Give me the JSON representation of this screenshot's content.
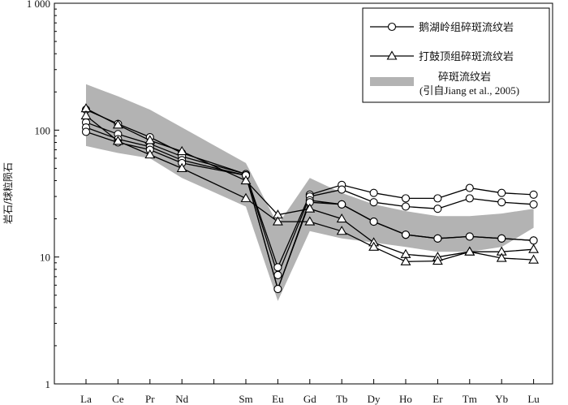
{
  "chart_data": {
    "type": "line",
    "title": "",
    "xlabel": "",
    "ylabel": "岩石/球粒陨石",
    "yscale": "log",
    "ylim": [
      1,
      1000
    ],
    "yticks": [
      "1",
      "10",
      "100",
      "1 000"
    ],
    "categories": [
      "La",
      "Ce",
      "Pr",
      "Nd",
      "Sm",
      "Eu",
      "Gd",
      "Tb",
      "Dy",
      "Ho",
      "Er",
      "Tm",
      "Yb",
      "Lu"
    ],
    "category_positions": [
      0,
      1,
      2,
      3,
      5,
      6,
      7,
      8,
      9,
      10,
      11,
      12,
      13,
      14
    ],
    "legend_position": "top-right",
    "series": [
      {
        "name": "鹅湖岭组碎斑流纹岩",
        "marker": "circle",
        "lines": [
          [
            145,
            112,
            88,
            66,
            45,
            8.3,
            31,
            37,
            32,
            29,
            29,
            35,
            32,
            31
          ],
          [
            115,
            93,
            78,
            62,
            45,
            7.2,
            30,
            34,
            27,
            25,
            24,
            29,
            27,
            26
          ],
          [
            105,
            85,
            74,
            58,
            44,
            5.6,
            28,
            26,
            19,
            15,
            14,
            14.5,
            14,
            13.5
          ],
          [
            97,
            80,
            70,
            55,
            44,
            5.6,
            27,
            26,
            19,
            15,
            14,
            14.5,
            14,
            13.5
          ]
        ]
      },
      {
        "name": "打鼓顶组碎斑流纹岩",
        "marker": "triangle",
        "lines": [
          [
            148,
            110,
            83,
            68,
            40,
            21.5,
            24,
            20,
            13,
            10.5,
            10,
            11,
            11,
            11.5
          ],
          [
            130,
            82,
            64,
            50,
            29,
            19,
            19,
            16,
            12,
            9.2,
            9.3,
            11,
            9.8,
            9.5
          ]
        ]
      }
    ],
    "band": {
      "name": "碎斑流纹岩",
      "source": "(引自Jiang et al., 2005)",
      "color": "#b3b3b3",
      "upper": [
        230,
        185,
        145,
        105,
        55,
        18,
        42,
        32,
        26,
        23,
        21,
        21,
        22,
        24
      ],
      "lower": [
        75,
        66,
        60,
        42,
        25,
        4.5,
        16,
        14,
        13,
        12,
        11,
        11,
        12,
        17
      ]
    }
  }
}
